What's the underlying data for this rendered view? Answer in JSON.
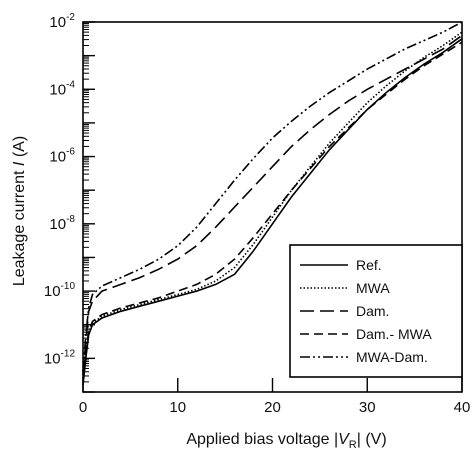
{
  "chart_data": {
    "type": "line",
    "xlabel": {
      "prefix": "Applied bias voltage |",
      "symbol": "V",
      "subscript": "R",
      "suffix": "| (V)"
    },
    "ylabel": {
      "prefix": "Leakage current ",
      "symbol": "I",
      "suffix": " (A)"
    },
    "xlim": [
      0,
      40
    ],
    "ylim_log10": [
      -13,
      -2
    ],
    "yscale": "log",
    "x_ticks": [
      0,
      10,
      20,
      30,
      40
    ],
    "y_ticks": [
      {
        "base": "10",
        "exp": "-2",
        "value": -2
      },
      {
        "base": "10",
        "exp": "-4",
        "value": -4
      },
      {
        "base": "10",
        "exp": "-6",
        "value": -6
      },
      {
        "base": "10",
        "exp": "-8",
        "value": -8
      },
      {
        "base": "10",
        "exp": "-10",
        "value": -10
      },
      {
        "base": "10",
        "exp": "-12",
        "value": -12
      }
    ],
    "legend_position": "bottom-right",
    "series": [
      {
        "name": "Ref.",
        "dash": "",
        "points": [
          [
            0,
            -12.8
          ],
          [
            0.3,
            -12.0
          ],
          [
            0.6,
            -11.3
          ],
          [
            1,
            -11.0
          ],
          [
            2,
            -10.8
          ],
          [
            4,
            -10.6
          ],
          [
            6,
            -10.45
          ],
          [
            8,
            -10.3
          ],
          [
            10,
            -10.15
          ],
          [
            12,
            -10.0
          ],
          [
            14,
            -9.8
          ],
          [
            16,
            -9.5
          ],
          [
            18,
            -8.8
          ],
          [
            20,
            -8.0
          ],
          [
            22,
            -7.2
          ],
          [
            24,
            -6.5
          ],
          [
            26,
            -5.8
          ],
          [
            28,
            -5.2
          ],
          [
            30,
            -4.6
          ],
          [
            32,
            -4.1
          ],
          [
            34,
            -3.65
          ],
          [
            36,
            -3.25
          ],
          [
            38,
            -2.9
          ],
          [
            40,
            -2.5
          ]
        ]
      },
      {
        "name": "MWA",
        "dash": "1.5 2",
        "points": [
          [
            0,
            -12.6
          ],
          [
            0.3,
            -11.8
          ],
          [
            0.6,
            -11.2
          ],
          [
            1,
            -10.95
          ],
          [
            2,
            -10.75
          ],
          [
            4,
            -10.55
          ],
          [
            6,
            -10.4
          ],
          [
            8,
            -10.25
          ],
          [
            10,
            -10.1
          ],
          [
            12,
            -9.95
          ],
          [
            14,
            -9.7
          ],
          [
            16,
            -9.3
          ],
          [
            18,
            -8.6
          ],
          [
            20,
            -7.8
          ],
          [
            22,
            -7.0
          ],
          [
            24,
            -6.3
          ],
          [
            26,
            -5.6
          ],
          [
            28,
            -5.0
          ],
          [
            30,
            -4.4
          ],
          [
            32,
            -3.9
          ],
          [
            34,
            -3.45
          ],
          [
            36,
            -3.05
          ],
          [
            38,
            -2.7
          ],
          [
            40,
            -2.3
          ]
        ]
      },
      {
        "name": "Dam.",
        "dash": "14 6",
        "points": [
          [
            0,
            -12.5
          ],
          [
            0.3,
            -11.5
          ],
          [
            0.6,
            -10.6
          ],
          [
            1,
            -10.3
          ],
          [
            2,
            -10.0
          ],
          [
            4,
            -9.8
          ],
          [
            6,
            -9.6
          ],
          [
            8,
            -9.35
          ],
          [
            10,
            -9.05
          ],
          [
            12,
            -8.65
          ],
          [
            14,
            -8.1
          ],
          [
            16,
            -7.5
          ],
          [
            18,
            -6.9
          ],
          [
            20,
            -6.3
          ],
          [
            22,
            -5.7
          ],
          [
            24,
            -5.2
          ],
          [
            26,
            -4.75
          ],
          [
            28,
            -4.35
          ],
          [
            30,
            -4.0
          ],
          [
            32,
            -3.7
          ],
          [
            34,
            -3.4
          ],
          [
            36,
            -3.1
          ],
          [
            38,
            -2.8
          ],
          [
            40,
            -2.4
          ]
        ]
      },
      {
        "name": "Dam.- MWA",
        "dash": "9 5",
        "points": [
          [
            0,
            -12.7
          ],
          [
            0.3,
            -11.9
          ],
          [
            0.6,
            -11.2
          ],
          [
            1,
            -10.9
          ],
          [
            2,
            -10.7
          ],
          [
            4,
            -10.5
          ],
          [
            6,
            -10.35
          ],
          [
            8,
            -10.2
          ],
          [
            10,
            -10.0
          ],
          [
            12,
            -9.8
          ],
          [
            14,
            -9.5
          ],
          [
            16,
            -9.05
          ],
          [
            18,
            -8.4
          ],
          [
            20,
            -7.7
          ],
          [
            22,
            -7.0
          ],
          [
            24,
            -6.35
          ],
          [
            26,
            -5.7
          ],
          [
            28,
            -5.15
          ],
          [
            30,
            -4.6
          ],
          [
            32,
            -4.15
          ],
          [
            34,
            -3.7
          ],
          [
            36,
            -3.3
          ],
          [
            38,
            -2.95
          ],
          [
            40,
            -2.6
          ]
        ]
      },
      {
        "name": "MWA-Dam.",
        "dash": "10 3 2 3 2 3",
        "points": [
          [
            0,
            -12.4
          ],
          [
            0.3,
            -11.3
          ],
          [
            0.6,
            -10.5
          ],
          [
            1,
            -10.1
          ],
          [
            2,
            -9.85
          ],
          [
            4,
            -9.6
          ],
          [
            6,
            -9.35
          ],
          [
            8,
            -9.05
          ],
          [
            10,
            -8.65
          ],
          [
            12,
            -8.1
          ],
          [
            14,
            -7.4
          ],
          [
            16,
            -6.7
          ],
          [
            18,
            -6.05
          ],
          [
            20,
            -5.45
          ],
          [
            22,
            -4.95
          ],
          [
            24,
            -4.5
          ],
          [
            26,
            -4.1
          ],
          [
            28,
            -3.75
          ],
          [
            30,
            -3.4
          ],
          [
            32,
            -3.1
          ],
          [
            34,
            -2.8
          ],
          [
            36,
            -2.55
          ],
          [
            38,
            -2.3
          ],
          [
            40,
            -2.0
          ]
        ]
      }
    ]
  }
}
